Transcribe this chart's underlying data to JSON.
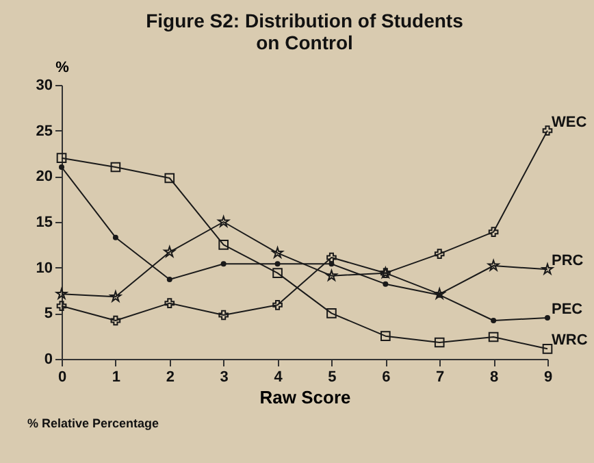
{
  "chart_data": {
    "type": "line",
    "title": "Figure S2: Distribution of Students\non Control",
    "xlabel": "Raw Score",
    "ylabel": "%",
    "x": [
      0,
      1,
      2,
      3,
      4,
      5,
      6,
      7,
      8,
      9
    ],
    "series": [
      {
        "name": "WEC",
        "color": "#1a1a1a",
        "marker": "cross",
        "values": [
          5.8,
          4.2,
          6.1,
          4.8,
          5.9,
          11.1,
          9.4,
          11.5,
          13.9,
          25
        ]
      },
      {
        "name": "PRC",
        "color": "#1a1a1a",
        "marker": "star",
        "values": [
          7.1,
          6.8,
          11.7,
          15,
          11.6,
          9.1,
          9.4,
          7.1,
          10.2,
          9.8
        ]
      },
      {
        "name": "PEC",
        "color": "#1a1a1a",
        "marker": "circle",
        "values": [
          21,
          13.3,
          8.7,
          10.4,
          10.4,
          10.4,
          8.2,
          7,
          4.2,
          4.5
        ]
      },
      {
        "name": "WRC",
        "color": "#1a1a1a",
        "marker": "square",
        "values": [
          22,
          21,
          19.8,
          12.5,
          9.4,
          5,
          2.5,
          1.8,
          2.4,
          1.1
        ]
      }
    ],
    "xlim": [
      0,
      9
    ],
    "xticks": [
      0,
      1,
      2,
      3,
      4,
      5,
      6,
      7,
      8,
      9
    ],
    "ylim": [
      0,
      30
    ],
    "yticks": [
      0,
      5,
      10,
      15,
      20,
      25,
      30
    ],
    "grid": false,
    "annotations": [
      "% Relative Percentage"
    ]
  }
}
